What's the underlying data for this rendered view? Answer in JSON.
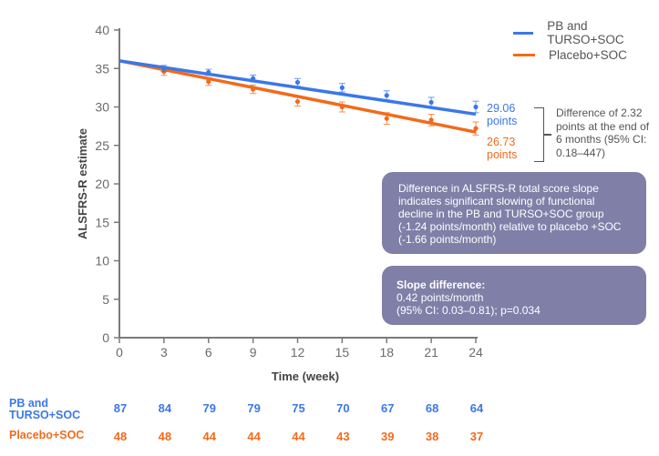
{
  "chart_data": {
    "type": "line",
    "title": "",
    "xlabel": "Time (week)",
    "ylabel": "ALSFRS-R estimate",
    "xlim": [
      0,
      24
    ],
    "ylim": [
      0,
      40
    ],
    "x_ticks": [
      0,
      3,
      6,
      9,
      12,
      15,
      18,
      21,
      24
    ],
    "y_ticks": [
      0,
      5,
      10,
      15,
      20,
      25,
      30,
      35,
      40
    ],
    "grid": false,
    "legend_position": "top-right",
    "series": [
      {
        "name": "PB and TURSO+SOC",
        "color": "#3b78e7",
        "fit_line": {
          "x": [
            0,
            24
          ],
          "y": [
            36.0,
            29.06
          ]
        },
        "points": {
          "x": [
            3,
            6,
            9,
            12,
            15,
            18,
            21,
            24
          ],
          "y": [
            35.0,
            34.5,
            33.7,
            33.2,
            32.5,
            31.5,
            30.6,
            30.0
          ],
          "err": [
            0.4,
            0.4,
            0.45,
            0.5,
            0.55,
            0.6,
            0.65,
            0.75
          ]
        }
      },
      {
        "name": "Placebo+SOC",
        "color": "#f26a1b",
        "fit_line": {
          "x": [
            0,
            24
          ],
          "y": [
            36.0,
            26.73
          ]
        },
        "points": {
          "x": [
            3,
            6,
            9,
            12,
            15,
            18,
            21,
            24
          ],
          "y": [
            34.6,
            33.3,
            32.3,
            30.7,
            30.0,
            28.5,
            28.3,
            27.2
          ],
          "err": [
            0.5,
            0.5,
            0.55,
            0.6,
            0.65,
            0.75,
            0.75,
            0.85
          ]
        }
      }
    ],
    "annotations": {
      "end_labels": [
        {
          "series": "PB and TURSO+SOC",
          "line1": "29.06",
          "line2": "points"
        },
        {
          "series": "Placebo+SOC",
          "line1": "26.73",
          "line2": "points"
        }
      ],
      "difference_note": "Difference of 2.32 points at the end of 6 months (95% CI: 0.18–447)",
      "callout_slope": "Difference in ALSFRS-R total score slope indicates significant slowing of functional decline in the PB and TURSO+SOC group (-1.24 points/month) relative to placebo +SOC (-1.66 points/month)",
      "callout_diff_title": "Slope difference:",
      "callout_diff_line1": "0.42 points/month",
      "callout_diff_line2": "(95% CI: 0.03–0.81); p=0.034"
    },
    "at_risk_table": {
      "rows": [
        {
          "label_line1": "PB and",
          "label_line2": "TURSO+SOC",
          "color": "#3b78e7",
          "values": [
            87,
            84,
            79,
            79,
            75,
            70,
            67,
            68,
            64
          ]
        },
        {
          "label_line1": "Placebo+SOC",
          "label_line2": "",
          "color": "#f26a1b",
          "values": [
            48,
            48,
            44,
            44,
            44,
            43,
            39,
            38,
            37
          ]
        }
      ]
    }
  }
}
